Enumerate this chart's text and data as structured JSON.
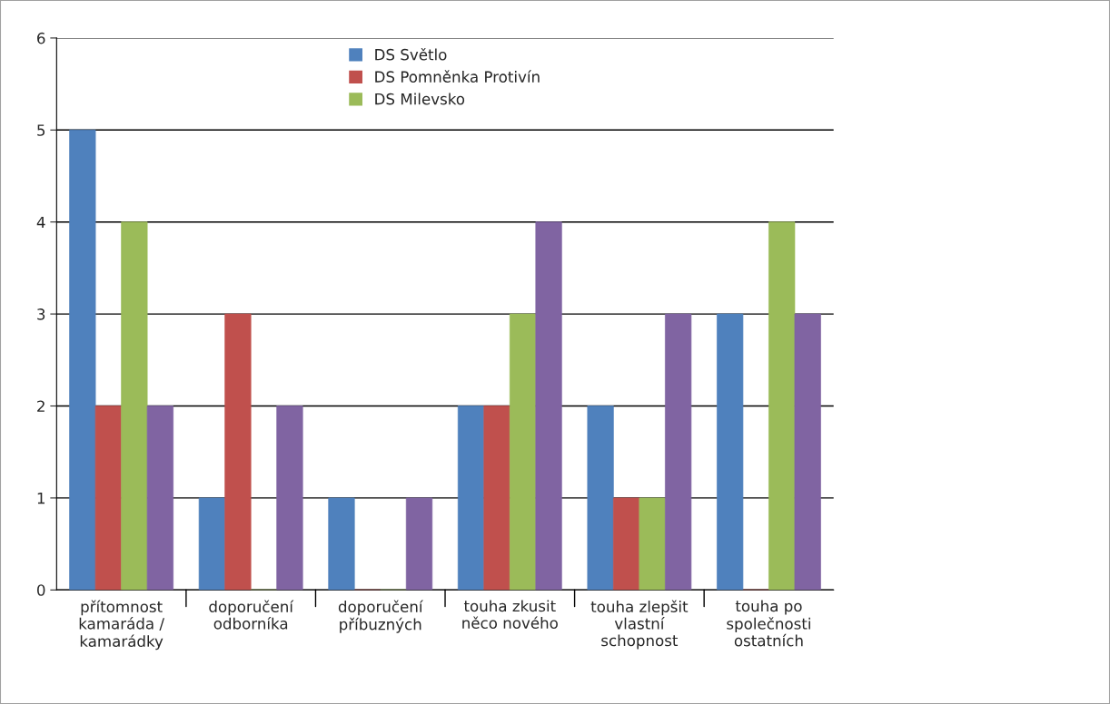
{
  "chart_data": {
    "type": "bar",
    "categories": [
      "přítomnost\nkamaráda /\nkamarádky",
      "doporučení\nodborníka",
      "doporučení\npříbuzných",
      "touha zkusit\nněco nového",
      "touha zlepšit\nvlastní\nschopnost",
      "touha po\nspolečnosti\nostatních"
    ],
    "series": [
      {
        "name": "DS Světlo",
        "color": "#4f81bd",
        "values": [
          5,
          1,
          1,
          2,
          2,
          3
        ]
      },
      {
        "name": "DS Pomněnka Protivín",
        "color": "#c0504d",
        "values": [
          2,
          3,
          0,
          2,
          1,
          0
        ]
      },
      {
        "name": "DS Milevsko",
        "color": "#9bbb59",
        "values": [
          4,
          0,
          0,
          3,
          1,
          4
        ]
      },
      {
        "color": "#8064a2",
        "values": [
          2,
          2,
          1,
          4,
          3,
          3
        ]
      }
    ],
    "ylim": [
      0,
      6
    ],
    "yticks": [
      0,
      1,
      2,
      3,
      4,
      5,
      6
    ],
    "grid": "y",
    "legend": "top"
  }
}
